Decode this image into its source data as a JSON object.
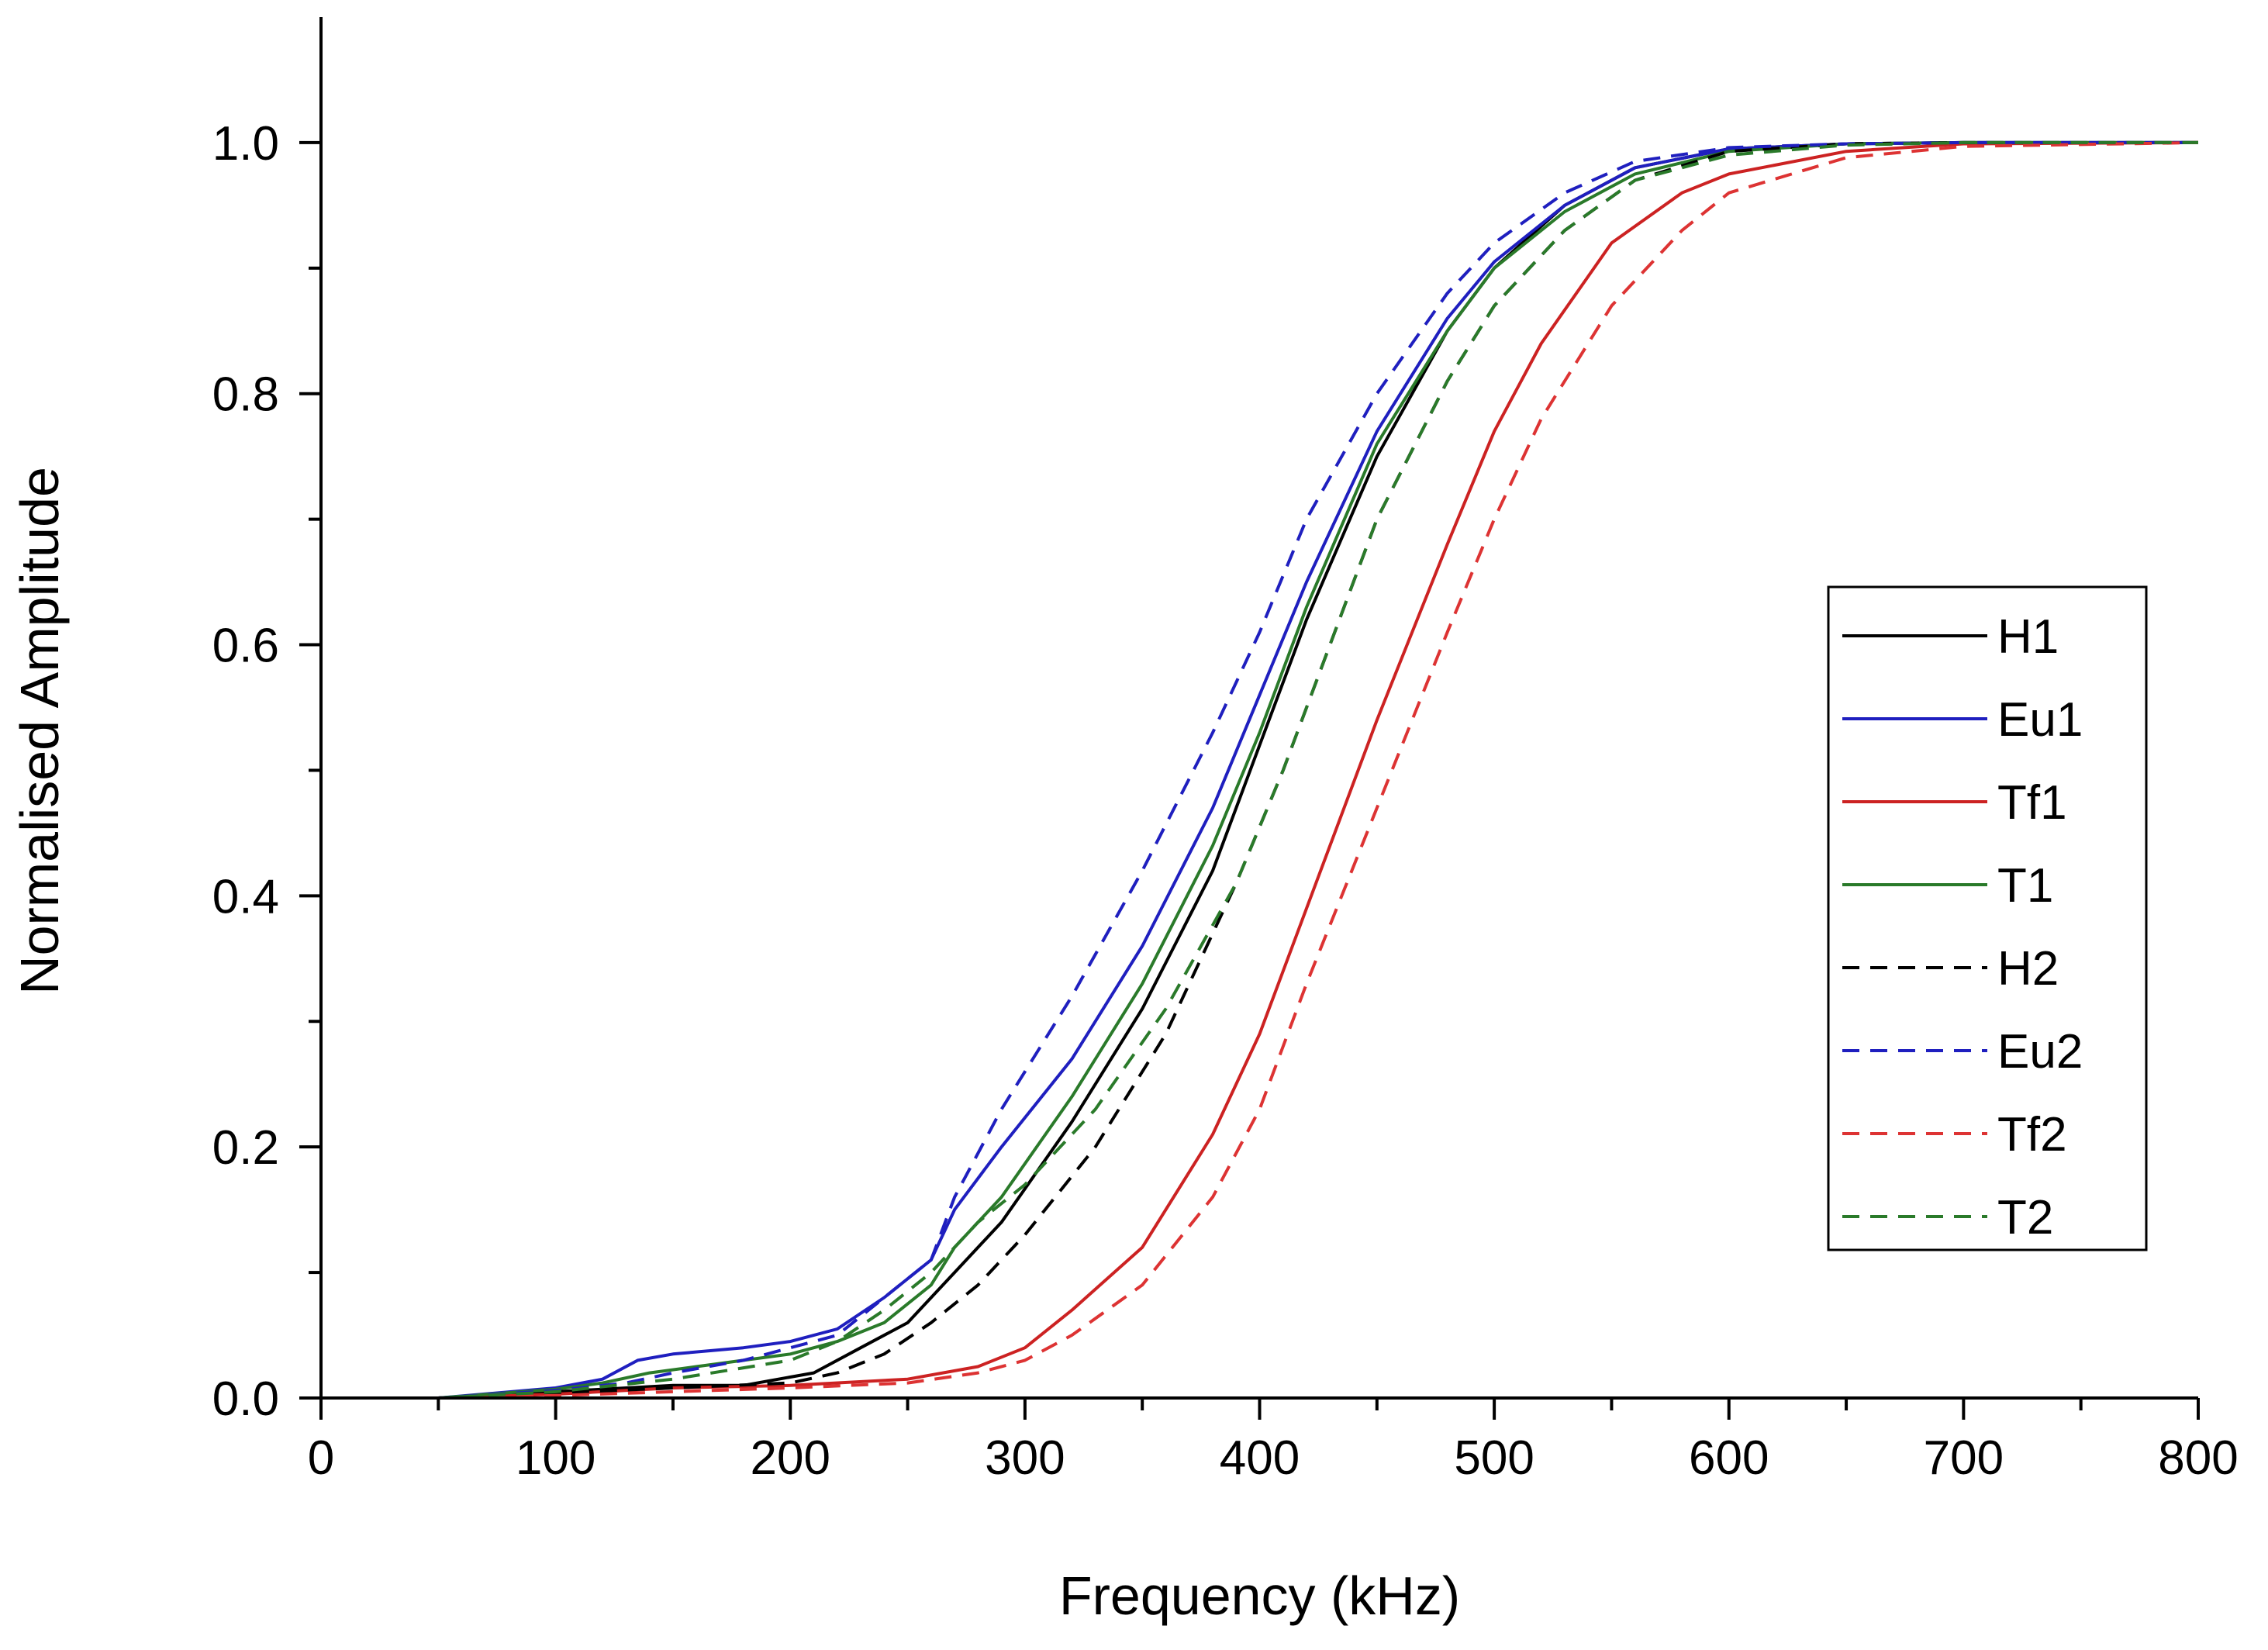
{
  "chart_data": {
    "type": "line",
    "title": "",
    "xlabel": "Frequency (kHz)",
    "ylabel": "Normalised Amplitude",
    "xlim": [
      0,
      800
    ],
    "ylim": [
      0,
      1.1
    ],
    "x_major_ticks": [
      0,
      100,
      200,
      300,
      400,
      500,
      600,
      700,
      800
    ],
    "x_tick_labels": [
      "0",
      "100",
      "200",
      "300",
      "400",
      "500",
      "600",
      "700",
      "800"
    ],
    "y_major_ticks": [
      0.0,
      0.2,
      0.4,
      0.6,
      0.8,
      1.0
    ],
    "y_tick_labels": [
      "0.0",
      "0.2",
      "0.4",
      "0.6",
      "0.8",
      "1.0"
    ],
    "grid": false,
    "legend_position": "right",
    "series": [
      {
        "name": "H1",
        "color": "#000000",
        "dash": "solid",
        "x": [
          0,
          50,
          100,
          150,
          180,
          210,
          230,
          250,
          270,
          290,
          320,
          350,
          380,
          400,
          420,
          450,
          480,
          500,
          530,
          560,
          600,
          650,
          700,
          800
        ],
        "y": [
          0,
          0,
          0.005,
          0.01,
          0.01,
          0.02,
          0.04,
          0.06,
          0.1,
          0.14,
          0.22,
          0.31,
          0.42,
          0.52,
          0.62,
          0.75,
          0.85,
          0.9,
          0.95,
          0.98,
          0.995,
          0.999,
          1.0,
          1.0
        ]
      },
      {
        "name": "Eu1",
        "color": "#1f1fbf",
        "dash": "solid",
        "x": [
          0,
          50,
          100,
          120,
          135,
          150,
          180,
          200,
          220,
          240,
          260,
          270,
          290,
          320,
          350,
          380,
          400,
          420,
          450,
          480,
          500,
          530,
          560,
          600,
          650,
          700,
          800
        ],
        "y": [
          0,
          0,
          0.008,
          0.015,
          0.03,
          0.035,
          0.04,
          0.045,
          0.055,
          0.08,
          0.11,
          0.15,
          0.2,
          0.27,
          0.36,
          0.47,
          0.56,
          0.65,
          0.77,
          0.86,
          0.905,
          0.95,
          0.98,
          0.995,
          0.999,
          1.0,
          1.0
        ]
      },
      {
        "name": "Tf1",
        "color": "#cc2222",
        "dash": "solid",
        "x": [
          0,
          50,
          100,
          150,
          200,
          250,
          280,
          300,
          320,
          350,
          380,
          400,
          420,
          450,
          480,
          500,
          520,
          550,
          580,
          600,
          650,
          700,
          800
        ],
        "y": [
          0,
          0,
          0.003,
          0.008,
          0.01,
          0.015,
          0.025,
          0.04,
          0.07,
          0.12,
          0.21,
          0.29,
          0.39,
          0.54,
          0.68,
          0.77,
          0.84,
          0.92,
          0.96,
          0.975,
          0.993,
          0.999,
          1.0
        ]
      },
      {
        "name": "T1",
        "color": "#2a7a2a",
        "dash": "solid",
        "x": [
          0,
          50,
          100,
          120,
          140,
          160,
          180,
          200,
          220,
          240,
          260,
          270,
          290,
          320,
          350,
          380,
          400,
          420,
          450,
          480,
          500,
          530,
          560,
          600,
          650,
          700,
          800
        ],
        "y": [
          0,
          0,
          0.007,
          0.012,
          0.02,
          0.025,
          0.03,
          0.035,
          0.045,
          0.06,
          0.09,
          0.12,
          0.16,
          0.24,
          0.33,
          0.44,
          0.53,
          0.63,
          0.76,
          0.85,
          0.9,
          0.945,
          0.975,
          0.993,
          0.999,
          1.0,
          1.0
        ]
      },
      {
        "name": "H2",
        "color": "#000000",
        "dash": "dashed",
        "x": [
          0,
          50,
          100,
          150,
          200,
          220,
          240,
          260,
          280,
          300,
          330,
          360,
          390,
          410,
          430,
          450,
          480,
          500,
          530,
          560,
          600,
          650,
          700,
          800
        ],
        "y": [
          0,
          0,
          0.004,
          0.008,
          0.012,
          0.02,
          0.035,
          0.06,
          0.09,
          0.13,
          0.2,
          0.29,
          0.41,
          0.5,
          0.6,
          0.7,
          0.81,
          0.87,
          0.93,
          0.97,
          0.993,
          0.999,
          1.0,
          1.0
        ]
      },
      {
        "name": "Eu2",
        "color": "#1f1fbf",
        "dash": "dashed",
        "x": [
          0,
          50,
          100,
          130,
          150,
          180,
          200,
          220,
          240,
          260,
          270,
          290,
          320,
          350,
          380,
          400,
          420,
          450,
          480,
          500,
          530,
          560,
          600,
          650,
          700,
          800
        ],
        "y": [
          0,
          0,
          0.006,
          0.012,
          0.02,
          0.03,
          0.04,
          0.05,
          0.08,
          0.11,
          0.16,
          0.23,
          0.32,
          0.42,
          0.53,
          0.61,
          0.7,
          0.8,
          0.88,
          0.92,
          0.96,
          0.985,
          0.996,
          0.999,
          1.0,
          1.0
        ]
      },
      {
        "name": "Tf2",
        "color": "#dd3333",
        "dash": "dashed",
        "x": [
          0,
          50,
          100,
          150,
          200,
          250,
          280,
          300,
          320,
          350,
          380,
          400,
          420,
          450,
          480,
          500,
          520,
          550,
          580,
          600,
          650,
          700,
          800
        ],
        "y": [
          0,
          0,
          0.002,
          0.005,
          0.008,
          0.012,
          0.02,
          0.03,
          0.05,
          0.09,
          0.16,
          0.23,
          0.33,
          0.47,
          0.61,
          0.7,
          0.78,
          0.87,
          0.93,
          0.96,
          0.988,
          0.997,
          1.0
        ]
      },
      {
        "name": "T2",
        "color": "#2a7a2a",
        "dash": "dashed",
        "x": [
          0,
          50,
          100,
          150,
          200,
          220,
          240,
          260,
          280,
          300,
          330,
          360,
          390,
          410,
          430,
          450,
          480,
          500,
          530,
          560,
          600,
          650,
          700,
          800
        ],
        "y": [
          0,
          0,
          0.005,
          0.015,
          0.03,
          0.045,
          0.07,
          0.1,
          0.14,
          0.17,
          0.23,
          0.31,
          0.41,
          0.5,
          0.6,
          0.7,
          0.81,
          0.87,
          0.93,
          0.97,
          0.99,
          0.998,
          1.0,
          1.0
        ]
      }
    ]
  }
}
